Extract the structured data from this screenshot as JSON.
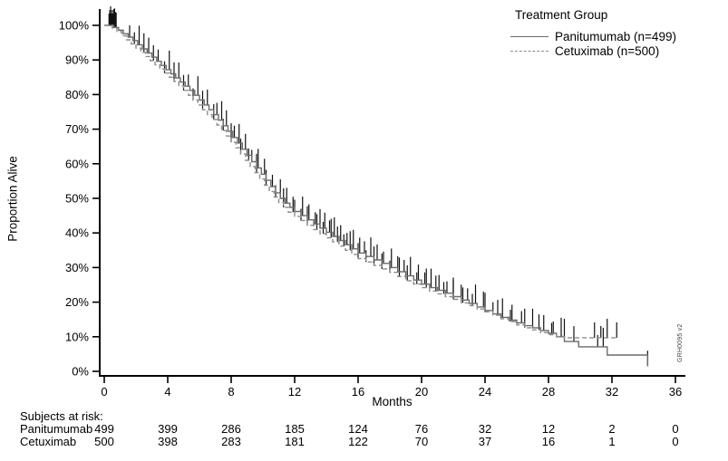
{
  "figure": {
    "watermark": "GRH0095 v2"
  },
  "legend": {
    "title": "Treatment Group",
    "items": [
      {
        "label": "Panitumumab (n=499)",
        "style": "solid"
      },
      {
        "label": "Cetuximab (n=500)",
        "style": "dashed"
      }
    ]
  },
  "chart_data": {
    "type": "line",
    "subtype": "kaplan-meier-step",
    "xlabel": "Months",
    "ylabel": "Proportion Alive",
    "xlim": [
      0,
      36
    ],
    "ylim": [
      0,
      100
    ],
    "xticks": [
      0,
      4,
      8,
      12,
      16,
      20,
      24,
      28,
      32,
      36
    ],
    "yticks": [
      {
        "value": 0,
        "label": "0%"
      },
      {
        "value": 10,
        "label": "10%"
      },
      {
        "value": 20,
        "label": "20%"
      },
      {
        "value": 30,
        "label": "30%"
      },
      {
        "value": 40,
        "label": "40%"
      },
      {
        "value": 50,
        "label": "50%"
      },
      {
        "value": 60,
        "label": "60%"
      },
      {
        "value": 70,
        "label": "70%"
      },
      {
        "value": 80,
        "label": "80%"
      },
      {
        "value": 90,
        "label": "90%"
      },
      {
        "value": 100,
        "label": "100%"
      }
    ],
    "censor_color": "#111111",
    "series": [
      {
        "name": "Panitumumab (n=499)",
        "line": "solid",
        "color": "#6b6b6b",
        "points": [
          [
            0,
            100
          ],
          [
            0.6,
            99.4
          ],
          [
            0.9,
            98.6
          ],
          [
            1.2,
            97.6
          ],
          [
            1.5,
            96.6
          ],
          [
            1.8,
            95.6
          ],
          [
            2.1,
            94.4
          ],
          [
            2.4,
            93.2
          ],
          [
            2.7,
            92
          ],
          [
            3,
            90.8
          ],
          [
            3.3,
            89.6
          ],
          [
            3.6,
            88.4
          ],
          [
            3.9,
            87.2
          ],
          [
            4.2,
            86
          ],
          [
            4.5,
            84.8
          ],
          [
            4.8,
            83.6
          ],
          [
            5.1,
            82.4
          ],
          [
            5.4,
            81.2
          ],
          [
            5.7,
            79.8
          ],
          [
            6,
            78.4
          ],
          [
            6.3,
            77
          ],
          [
            6.6,
            75.6
          ],
          [
            6.9,
            74.2
          ],
          [
            7.2,
            72.6
          ],
          [
            7.5,
            71
          ],
          [
            7.8,
            69.4
          ],
          [
            8.1,
            67.6
          ],
          [
            8.4,
            66
          ],
          [
            8.7,
            64.2
          ],
          [
            9,
            62.4
          ],
          [
            9.3,
            60.6
          ],
          [
            9.6,
            58.8
          ],
          [
            9.9,
            57
          ],
          [
            10.2,
            55.2
          ],
          [
            10.5,
            53.4
          ],
          [
            10.8,
            51.6
          ],
          [
            11.1,
            50
          ],
          [
            11.4,
            48.6
          ],
          [
            11.7,
            47.4
          ],
          [
            12,
            46.2
          ],
          [
            12.4,
            45
          ],
          [
            12.8,
            43.8
          ],
          [
            13.2,
            42.6
          ],
          [
            13.6,
            41.4
          ],
          [
            14,
            40.2
          ],
          [
            14.4,
            39
          ],
          [
            14.8,
            37.8
          ],
          [
            15.2,
            36.6
          ],
          [
            15.6,
            35.4
          ],
          [
            16,
            34.2
          ],
          [
            16.5,
            33.2
          ],
          [
            17,
            32.2
          ],
          [
            17.5,
            31.2
          ],
          [
            18,
            30
          ],
          [
            18.5,
            28.8
          ],
          [
            19,
            27.6
          ],
          [
            19.5,
            26.4
          ],
          [
            20,
            25.2
          ],
          [
            20.5,
            24.2
          ],
          [
            21,
            23.4
          ],
          [
            21.5,
            22.6
          ],
          [
            22,
            21.6
          ],
          [
            22.5,
            20.6
          ],
          [
            23,
            19.6
          ],
          [
            23.5,
            18.6
          ],
          [
            24,
            17.6
          ],
          [
            24.5,
            16.6
          ],
          [
            25,
            15.6
          ],
          [
            25.5,
            14.8
          ],
          [
            26,
            14
          ],
          [
            26.5,
            13.2
          ],
          [
            27,
            12.6
          ],
          [
            27.5,
            11.8
          ],
          [
            28,
            11
          ],
          [
            28.5,
            10
          ],
          [
            29,
            8.6
          ],
          [
            29.9,
            7.1
          ],
          [
            31.7,
            4.7
          ],
          [
            34.25,
            1.5
          ]
        ],
        "censor_months": [
          0.3,
          0.4,
          0.5,
          0.55,
          0.65,
          0.7,
          1.6,
          2.2,
          2.8,
          3.4,
          4.1,
          4.7,
          5.3,
          5.9,
          6.5,
          7.1,
          7.4,
          7.7,
          8.2,
          8.5,
          8.9,
          9.3,
          9.7,
          10.1,
          10.6,
          11.1,
          11.5,
          12.0,
          12.5,
          12.9,
          13.3,
          13.6,
          13.9,
          14.2,
          14.5,
          14.9,
          15.3,
          15.7,
          16.1,
          16.4,
          16.8,
          17.2,
          17.6,
          18.1,
          18.5,
          18.9,
          19.3,
          19.8,
          20.2,
          20.6,
          21.1,
          21.6,
          22.0,
          22.5,
          22.9,
          23.4,
          23.9,
          24.5,
          25.1,
          25.7,
          26.3,
          27.0,
          27.7,
          28.3,
          28.8,
          29.6,
          31.1,
          31.45,
          34.25
        ]
      },
      {
        "name": "Cetuximab (n=500)",
        "line": "dashed",
        "color": "#8c8c8c",
        "points": [
          [
            0,
            100
          ],
          [
            0.5,
            99.2
          ],
          [
            0.8,
            98.2
          ],
          [
            1.1,
            97
          ],
          [
            1.4,
            95.8
          ],
          [
            1.7,
            94.6
          ],
          [
            2,
            93.4
          ],
          [
            2.3,
            92.2
          ],
          [
            2.6,
            91
          ],
          [
            2.9,
            89.8
          ],
          [
            3.2,
            88.6
          ],
          [
            3.5,
            87.4
          ],
          [
            3.8,
            86.2
          ],
          [
            4.1,
            85
          ],
          [
            4.4,
            83.8
          ],
          [
            4.7,
            82.6
          ],
          [
            5,
            81.2
          ],
          [
            5.3,
            79.8
          ],
          [
            5.6,
            78.4
          ],
          [
            5.9,
            77
          ],
          [
            6.2,
            75.6
          ],
          [
            6.5,
            74.2
          ],
          [
            6.8,
            72.8
          ],
          [
            7.1,
            71.2
          ],
          [
            7.4,
            69.6
          ],
          [
            7.7,
            68
          ],
          [
            8,
            66.2
          ],
          [
            8.3,
            64.6
          ],
          [
            8.6,
            62.8
          ],
          [
            8.9,
            61
          ],
          [
            9.2,
            59.2
          ],
          [
            9.5,
            57.4
          ],
          [
            9.8,
            55.6
          ],
          [
            10.1,
            53.8
          ],
          [
            10.4,
            52
          ],
          [
            10.7,
            50.4
          ],
          [
            11,
            48.8
          ],
          [
            11.3,
            47.4
          ],
          [
            11.6,
            46
          ],
          [
            12,
            44.8
          ],
          [
            12.4,
            43.6
          ],
          [
            12.8,
            42.2
          ],
          [
            13.2,
            41
          ],
          [
            13.6,
            39.8
          ],
          [
            14,
            38.6
          ],
          [
            14.4,
            37.4
          ],
          [
            14.8,
            36.2
          ],
          [
            15.2,
            35
          ],
          [
            15.6,
            33.8
          ],
          [
            16,
            32.6
          ],
          [
            16.5,
            31.6
          ],
          [
            17,
            30.6
          ],
          [
            17.5,
            29.6
          ],
          [
            18,
            28.6
          ],
          [
            18.5,
            27.4
          ],
          [
            19,
            26.2
          ],
          [
            19.5,
            25.2
          ],
          [
            20,
            24.2
          ],
          [
            20.5,
            23.2
          ],
          [
            21,
            22.4
          ],
          [
            21.5,
            21.6
          ],
          [
            22,
            20.8
          ],
          [
            22.5,
            19.8
          ],
          [
            23,
            19
          ],
          [
            23.5,
            18
          ],
          [
            24,
            17.2
          ],
          [
            24.5,
            16.2
          ],
          [
            25,
            15.2
          ],
          [
            25.5,
            14.4
          ],
          [
            26,
            13.4
          ],
          [
            26.5,
            12.6
          ],
          [
            27,
            12
          ],
          [
            27.5,
            11.2
          ],
          [
            28,
            10.6
          ],
          [
            28.5,
            10.1
          ],
          [
            29,
            9.7
          ],
          [
            32.3,
            9.7
          ]
        ],
        "censor_months": [
          0.35,
          0.45,
          0.6,
          0.75,
          1.9,
          2.5,
          3.1,
          3.8,
          4.4,
          5.0,
          5.6,
          6.2,
          6.9,
          7.5,
          8.0,
          8.6,
          9.1,
          9.6,
          10.2,
          10.8,
          11.3,
          11.9,
          12.4,
          12.8,
          13.4,
          13.8,
          14.3,
          14.7,
          15.1,
          15.5,
          16.0,
          16.5,
          17.0,
          17.5,
          18.0,
          18.6,
          19.1,
          19.7,
          20.3,
          20.9,
          21.4,
          22.0,
          22.6,
          23.2,
          24.0,
          24.8,
          25.6,
          26.5,
          27.4,
          28.2,
          29.0,
          30.9,
          31.3,
          31.7,
          32.3
        ]
      }
    ]
  },
  "risk_table": {
    "title": "Subjects at risk:",
    "columns": [
      0,
      4,
      8,
      12,
      16,
      20,
      24,
      28,
      32,
      36
    ],
    "rows": [
      {
        "label": "Panitumumab",
        "values": [
          "499",
          "399",
          "286",
          "185",
          "124",
          "76",
          "32",
          "12",
          "2",
          "0"
        ]
      },
      {
        "label": "Cetuximab",
        "values": [
          "500",
          "398",
          "283",
          "181",
          "122",
          "70",
          "37",
          "16",
          "1",
          "0"
        ]
      }
    ]
  }
}
